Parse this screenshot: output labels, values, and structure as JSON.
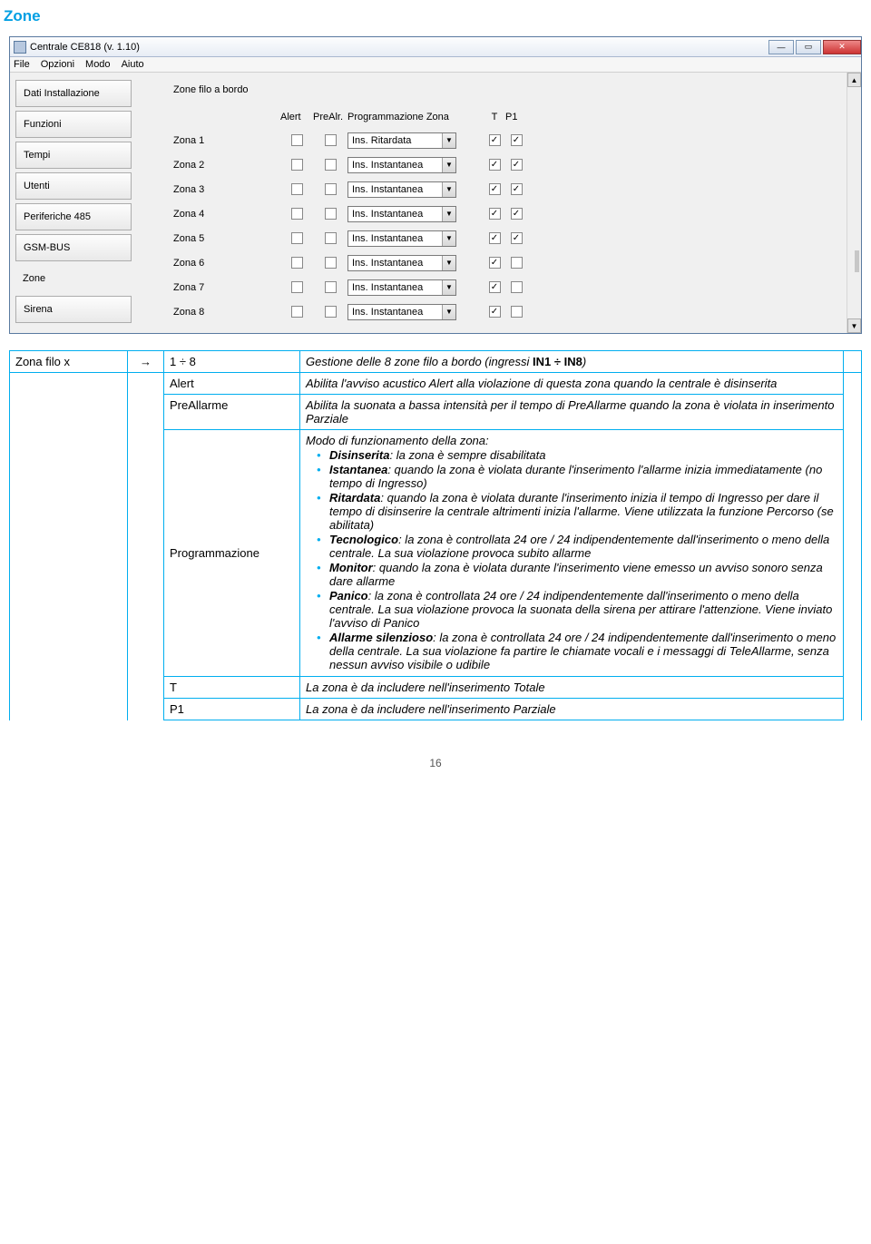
{
  "page": {
    "heading": "Zone",
    "number": "16"
  },
  "window": {
    "title": "Centrale CE818 (v. 1.10)",
    "menu": [
      "File",
      "Opzioni",
      "Modo",
      "Aiuto"
    ],
    "sidebar": [
      {
        "label": "Dati Installazione",
        "kind": "button"
      },
      {
        "label": "Funzioni",
        "kind": "button"
      },
      {
        "label": "Tempi",
        "kind": "button"
      },
      {
        "label": "Utenti",
        "kind": "button"
      },
      {
        "label": "Periferiche 485",
        "kind": "button"
      },
      {
        "label": "GSM-BUS",
        "kind": "button"
      },
      {
        "label": "Zone",
        "kind": "link"
      },
      {
        "label": "Sirena",
        "kind": "button"
      }
    ]
  },
  "zones": {
    "title": "Zone filo a bordo",
    "headers": {
      "alert": "Alert",
      "prealr": "PreAlr.",
      "prog": "Programmazione Zona",
      "t": "T",
      "p1": "P1"
    },
    "rows": [
      {
        "name": "Zona 1",
        "alert": false,
        "prealr": false,
        "prog": "Ins. Ritardata",
        "t": true,
        "p1": true
      },
      {
        "name": "Zona 2",
        "alert": false,
        "prealr": false,
        "prog": "Ins. Instantanea",
        "t": true,
        "p1": true
      },
      {
        "name": "Zona 3",
        "alert": false,
        "prealr": false,
        "prog": "Ins. Instantanea",
        "t": true,
        "p1": true
      },
      {
        "name": "Zona 4",
        "alert": false,
        "prealr": false,
        "prog": "Ins. Instantanea",
        "t": true,
        "p1": true
      },
      {
        "name": "Zona 5",
        "alert": false,
        "prealr": false,
        "prog": "Ins. Instantanea",
        "t": true,
        "p1": true
      },
      {
        "name": "Zona 6",
        "alert": false,
        "prealr": false,
        "prog": "Ins. Instantanea",
        "t": true,
        "p1": false
      },
      {
        "name": "Zona 7",
        "alert": false,
        "prealr": false,
        "prog": "Ins. Instantanea",
        "t": true,
        "p1": false
      },
      {
        "name": "Zona 8",
        "alert": false,
        "prealr": false,
        "prog": "Ins. Instantanea",
        "t": true,
        "p1": false
      }
    ]
  },
  "def": {
    "r0": {
      "label": "Zona filo x",
      "arrow": "→",
      "range": "1 ÷ 8",
      "desc_pre": "Gestione delle 8 zone filo a bordo (ingressi ",
      "desc_bold": "IN1 ÷ IN8",
      "desc_post": ")"
    },
    "r1": {
      "label": "Alert",
      "desc": "Abilita l'avviso acustico Alert alla violazione di questa zona quando la centrale è disinserita"
    },
    "r2": {
      "label": "PreAllarme",
      "desc": "Abilita la suonata a bassa intensità per il tempo di PreAllarme quando la zona è violata in inserimento Parziale"
    },
    "r3": {
      "label": "Programmazione",
      "intro": "Modo di funzionamento della zona:",
      "items": [
        {
          "b": "Disinserita",
          "t": ": la zona è sempre disabilitata"
        },
        {
          "b": "Istantanea",
          "t": ": quando la zona è violata durante l'inserimento l'allarme inizia immediatamente (no tempo di Ingresso)"
        },
        {
          "b": "Ritardata",
          "t": ": quando la zona è violata durante l'inserimento inizia il tempo di Ingresso per dare il tempo di disinserire la centrale altrimenti inizia l'allarme. Viene utilizzata la funzione Percorso (se abilitata)"
        },
        {
          "b": "Tecnologico",
          "t": ": la zona è controllata 24 ore / 24 indipendentemente dall'inserimento o meno della centrale. La sua violazione provoca subito allarme"
        },
        {
          "b": "Monitor",
          "t": ": quando la zona è violata durante l'inserimento viene emesso un avviso sonoro senza dare allarme"
        },
        {
          "b": "Panico",
          "t": ": la zona è controllata 24 ore / 24 indipendentemente dall'inserimento o meno della centrale. La sua violazione provoca la suonata della sirena per attirare l'attenzione. Viene inviato l'avviso di Panico"
        },
        {
          "b": "Allarme silenzioso",
          "t": ": la zona è controllata 24 ore / 24 indipendentemente dall'inserimento o meno della centrale. La sua violazione fa partire le chiamate vocali e i messaggi di TeleAllarme, senza nessun avviso visibile o udibile"
        }
      ]
    },
    "r4": {
      "label": "T",
      "desc": "La zona è da includere nell'inserimento Totale"
    },
    "r5": {
      "label": "P1",
      "desc": "La zona è da includere nell'inserimento Parziale"
    }
  }
}
